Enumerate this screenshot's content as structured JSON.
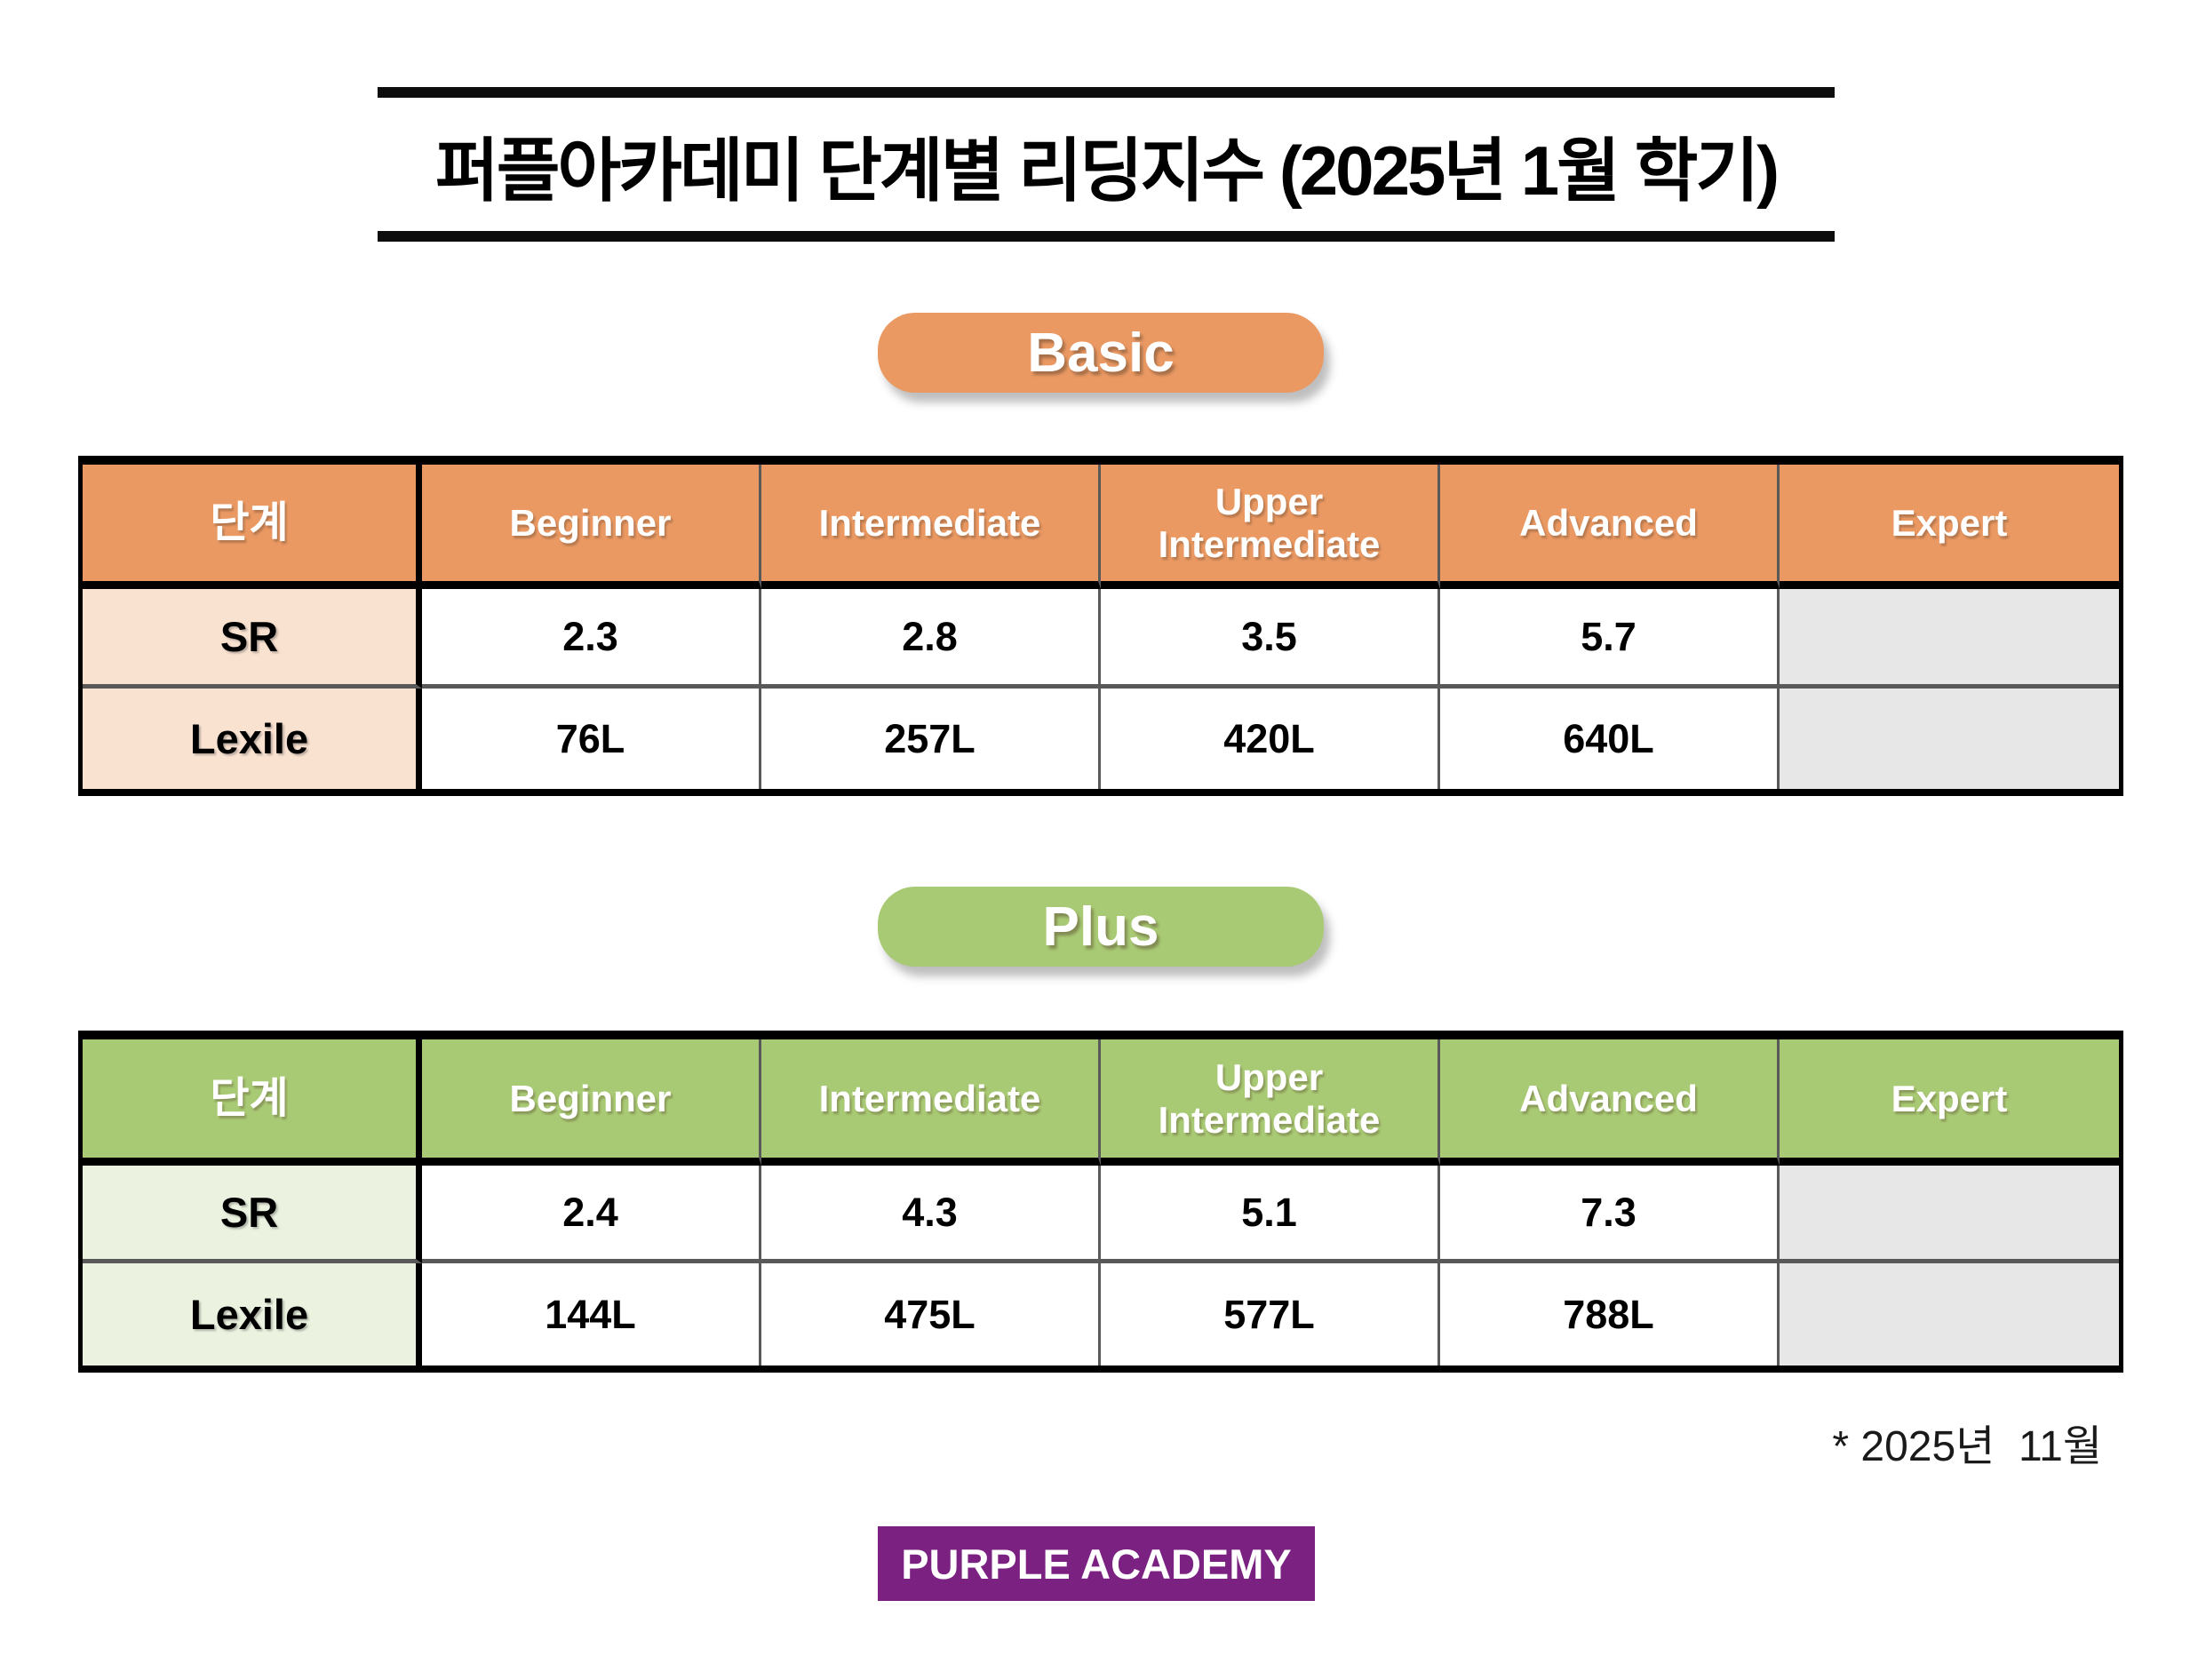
{
  "title": {
    "text": "퍼플아카데미 단계별 리딩지수 (2025년 1월 학기)"
  },
  "tables": [
    {
      "badge": "Basic",
      "theme_color": "#EB9963",
      "label_bg": "#FAE2D1",
      "columns": [
        "단계",
        "Beginner",
        "Intermediate",
        "Upper Intermediate",
        "Advanced",
        "Expert"
      ],
      "rows": [
        {
          "label": "SR",
          "values": [
            "2.3",
            "2.8",
            "3.5",
            "5.7",
            ""
          ]
        },
        {
          "label": "Lexile",
          "values": [
            "76L",
            "257L",
            "420L",
            "640L",
            ""
          ]
        }
      ]
    },
    {
      "badge": "Plus",
      "theme_color": "#A9CA74",
      "label_bg": "#EBF3E0",
      "columns": [
        "단계",
        "Beginner",
        "Intermediate",
        "Upper Intermediate",
        "Advanced",
        "Expert"
      ],
      "rows": [
        {
          "label": "SR",
          "values": [
            "2.4",
            "4.3",
            "5.1",
            "7.3",
            ""
          ]
        },
        {
          "label": "Lexile",
          "values": [
            "144L",
            "475L",
            "577L",
            "788L",
            ""
          ]
        }
      ]
    }
  ],
  "footnote": {
    "text": "* 2025년  11월"
  },
  "brand": {
    "text": "PURPLE ACADEMY",
    "background": "#7B2182"
  },
  "colors": {
    "basic_orange": "#EB9963",
    "basic_label_bg": "#FAE2D1",
    "plus_green": "#A9CA74",
    "plus_label_bg": "#EBF3E0",
    "empty_cell_gray": "#E7E7E7",
    "brand_purple": "#7B2182",
    "grid_line": "#595959",
    "border_black": "#000000"
  }
}
